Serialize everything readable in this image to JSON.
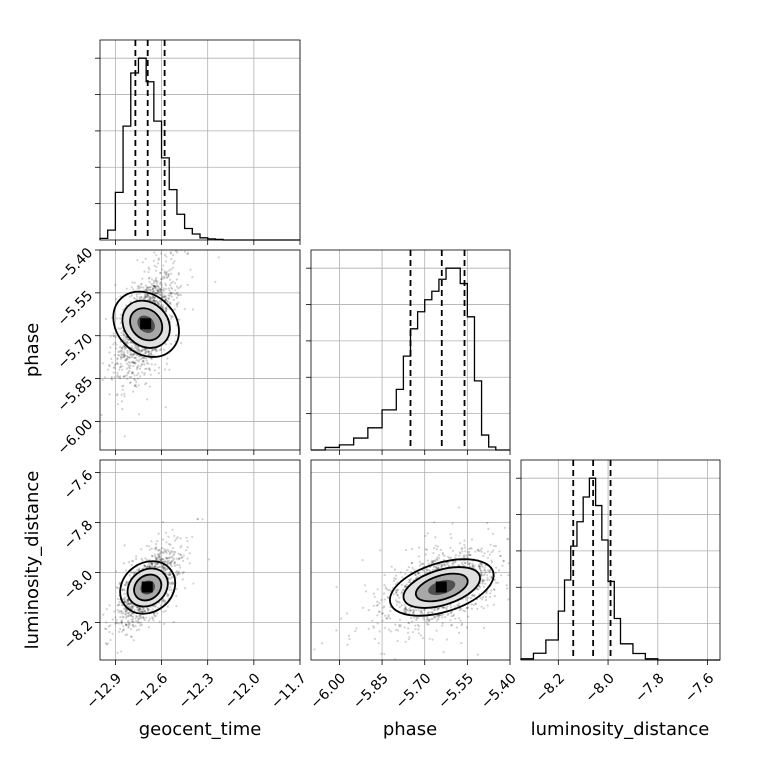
{
  "chart_data": {
    "type": "corner",
    "parameters": [
      "geocent_time",
      "phase",
      "luminosity_distance"
    ],
    "ranges": {
      "geocent_time": [
        -13.0,
        -11.7
      ],
      "phase": [
        -6.1,
        -5.4
      ],
      "luminosity_distance": [
        -8.35,
        -7.55
      ]
    },
    "ticks": {
      "geocent_time": [
        -12.9,
        -12.6,
        -12.3,
        -12.0,
        -11.7
      ],
      "phase": [
        -6.0,
        -5.85,
        -5.7,
        -5.55,
        -5.4
      ],
      "luminosity_distance": [
        -8.2,
        -8.0,
        -7.8,
        -7.6
      ]
    },
    "tick_labels": {
      "geocent_time": [
        "−12.9",
        "−12.6",
        "−12.3",
        "−12.0",
        "−11.7"
      ],
      "phase": [
        "−6.00",
        "−5.85",
        "−5.70",
        "−5.55",
        "−5.40"
      ],
      "luminosity_distance": [
        "−8.2",
        "−8.0",
        "−7.8",
        "−7.6"
      ]
    },
    "quantiles": {
      "geocent_time": [
        -12.77,
        -12.69,
        -12.58
      ],
      "phase": [
        -5.75,
        -5.64,
        -5.56
      ],
      "luminosity_distance": [
        -8.14,
        -8.06,
        -7.99
      ]
    },
    "histograms": {
      "geocent_time": {
        "edges": [
          -13.0,
          -12.95,
          -12.9,
          -12.85,
          -12.8,
          -12.75,
          -12.7,
          -12.65,
          -12.6,
          -12.55,
          -12.5,
          -12.45,
          -12.4,
          -12.35,
          -12.3,
          -12.25,
          -12.2
        ],
        "counts": [
          0.3,
          1.8,
          8.7,
          20.8,
          30.5,
          33.2,
          28.9,
          21.7,
          15.0,
          9.2,
          4.7,
          2.1,
          1.1,
          0.4,
          0.2,
          0.1
        ]
      },
      "phase": {
        "edges": [
          -6.05,
          -6.0,
          -5.95,
          -5.9,
          -5.85,
          -5.8,
          -5.775,
          -5.75,
          -5.725,
          -5.7,
          -5.675,
          -5.65,
          -5.625,
          -5.6,
          -5.575,
          -5.55,
          -5.525,
          -5.5,
          -5.475,
          -5.45
        ],
        "counts": [
          0.6,
          1.2,
          2.8,
          5.2,
          9.4,
          14.2,
          22.0,
          28.4,
          32.4,
          35.2,
          37.2,
          40.0,
          42.6,
          42.6,
          39.0,
          31.2,
          16.2,
          3.5,
          0.7
        ]
      },
      "luminosity_distance": {
        "edges": [
          -8.35,
          -8.3,
          -8.25,
          -8.2,
          -8.175,
          -8.15,
          -8.125,
          -8.1,
          -8.075,
          -8.05,
          -8.025,
          -8.0,
          -7.975,
          -7.95,
          -7.9,
          -7.85,
          -7.8
        ],
        "counts": [
          0.4,
          2.3,
          6.8,
          16.6,
          27.2,
          38.7,
          47.0,
          55.4,
          61.8,
          52.5,
          40.8,
          26.7,
          14.1,
          5.5,
          2.2,
          0.4
        ]
      }
    },
    "pairs": [
      {
        "x": "geocent_time",
        "y": "phase",
        "center": [
          -12.7,
          -5.66
        ],
        "sigma": [
          0.09,
          0.09
        ],
        "corr": 0.55
      },
      {
        "x": "geocent_time",
        "y": "luminosity_distance",
        "center": [
          -12.69,
          -8.06
        ],
        "sigma": [
          0.09,
          0.07
        ],
        "corr": 0.6
      },
      {
        "x": "phase",
        "y": "luminosity_distance",
        "center": [
          -5.64,
          -8.06
        ],
        "sigma": [
          0.09,
          0.07
        ],
        "corr": 0.45
      }
    ],
    "grid": true
  },
  "colors": {
    "ink": "#000000",
    "grid": "#b0b0b0",
    "background": "#ffffff"
  }
}
